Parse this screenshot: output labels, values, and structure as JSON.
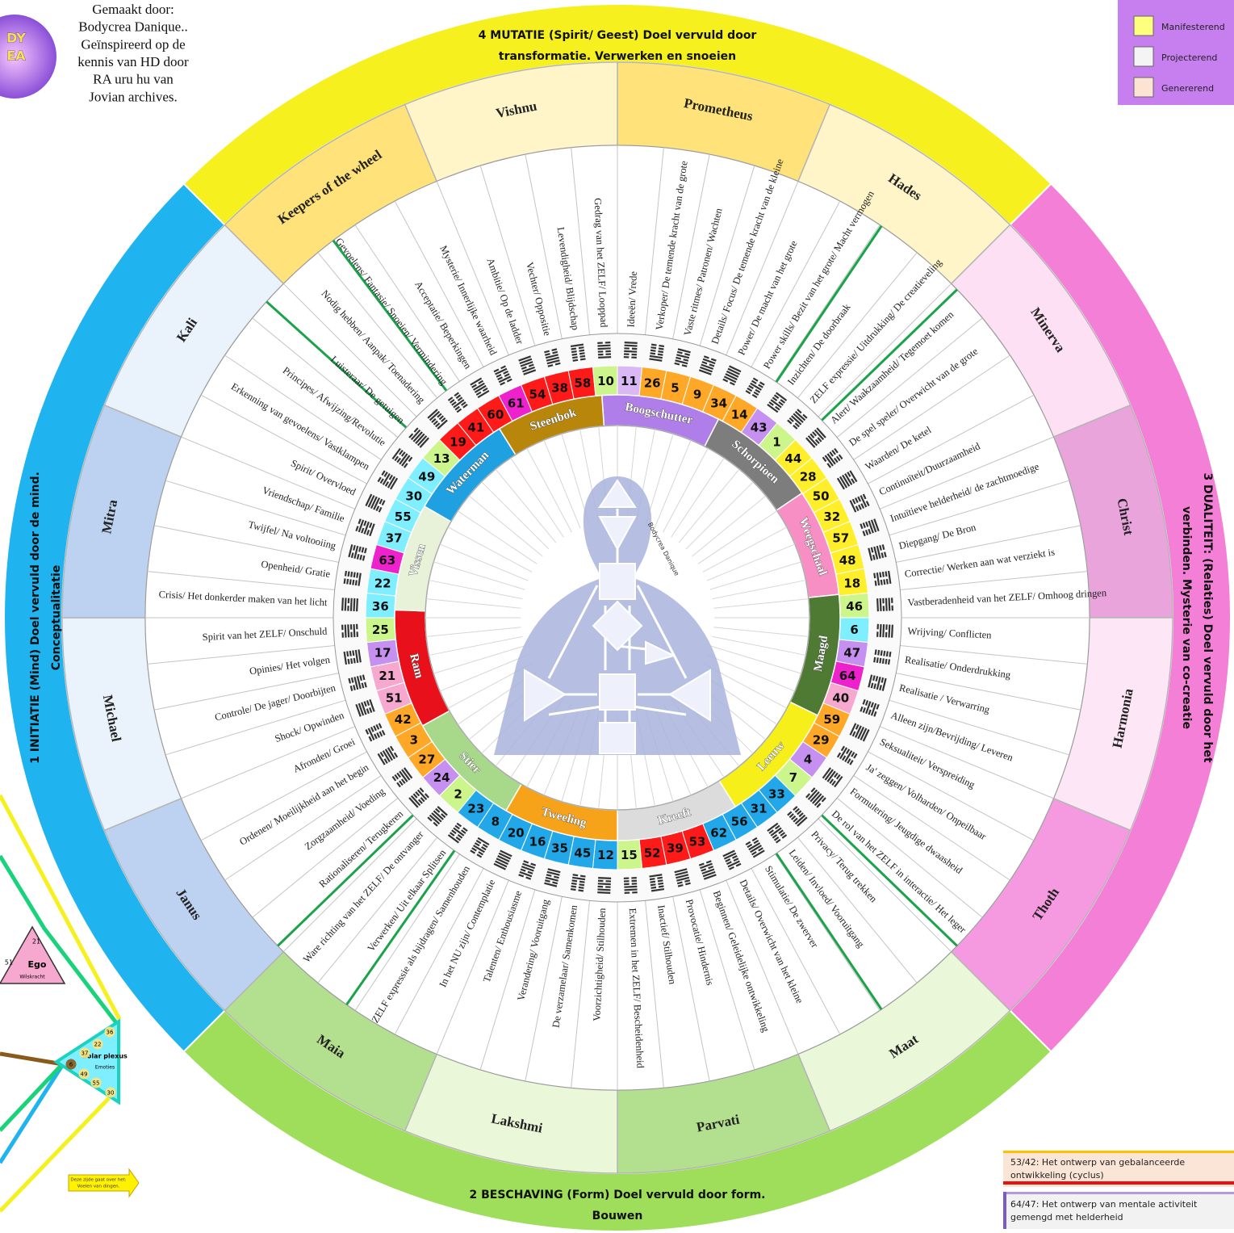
{
  "credit": {
    "lines": [
      "Gemaakt door:",
      "Bodycrea Danique..",
      "Geïnspireerd op de",
      "kennis van HD  door",
      "RA uru hu van",
      "Jovian archives."
    ]
  },
  "logo": [
    "DY",
    "EA"
  ],
  "legend": [
    {
      "label": "Manifesterend",
      "color": "#ffff80"
    },
    {
      "label": "Projecterend",
      "color": "#f4f4f4"
    },
    {
      "label": "Genererend",
      "color": "#fde3d3"
    }
  ],
  "quarters": [
    {
      "title_lines": [
        "4 MUTATIE (Spirit/ Geest) Doel vervuld door",
        "transformatie. Verwerken en snoeien"
      ],
      "color": "#f5f01e"
    },
    {
      "title_lines": [
        "3 DUALITEIT:  (Relaties)  Doel vervuld door het",
        "verbinden. Mysterie van co-creatie"
      ],
      "color": "#f47fd6"
    },
    {
      "title_lines": [
        "2 BESCHAVING (Form) Doel vervuld door form.",
        "Bouwen"
      ],
      "color": "#9ede5a"
    },
    {
      "title_lines": [
        "1 INITIATIE (Mind) Doel vervuld door  de mind.",
        "Conceptualitatie"
      ],
      "color": "#1fb3ef"
    }
  ],
  "gods": [
    {
      "name": "Prometheus",
      "color": "#ffe27a"
    },
    {
      "name": "Hades",
      "color": "#fff5c8"
    },
    {
      "name": "Minerva",
      "color": "#fde0f4"
    },
    {
      "name": "Christ",
      "color": "#eaa4dc"
    },
    {
      "name": "Harmonia",
      "color": "#fde6f6"
    },
    {
      "name": "Thoth",
      "color": "#f59ae0"
    },
    {
      "name": "Maat",
      "color": "#eaf7d8"
    },
    {
      "name": "Parvati",
      "color": "#b3e08f"
    },
    {
      "name": "Lakshmi",
      "color": "#eaf7d8"
    },
    {
      "name": "Maia",
      "color": "#b3e08f"
    },
    {
      "name": "Janus",
      "color": "#bcd2f0"
    },
    {
      "name": "Michael",
      "color": "#eaf2fb"
    },
    {
      "name": "Mitra",
      "color": "#bcd2f0"
    },
    {
      "name": "Kali",
      "color": "#eaf2fb"
    },
    {
      "name": "Keepers of the wheel",
      "color": "#ffe27a"
    },
    {
      "name": "Vishnu",
      "color": "#fff5c8"
    }
  ],
  "zodiac": [
    {
      "name": "Boogschutter",
      "color": "#b07ee8"
    },
    {
      "name": "Schorpioen",
      "color": "#7d7d7d"
    },
    {
      "name": "Weegschaal",
      "color": "#f78fc4"
    },
    {
      "name": "Maagd",
      "color": "#4f7a33"
    },
    {
      "name": "Leeuw",
      "color": "#f7ef1a"
    },
    {
      "name": "Kreeft",
      "color": "#dcdcdc"
    },
    {
      "name": "Tweeling",
      "color": "#f7a31a"
    },
    {
      "name": "Stier",
      "color": "#a8d98a"
    },
    {
      "name": "Ram",
      "color": "#e8101a"
    },
    {
      "name": "Vissen",
      "color": "#e8f2d8"
    },
    {
      "name": "Waterman",
      "color": "#1fa0e0"
    },
    {
      "name": "Steenbok",
      "color": "#b8860b"
    }
  ],
  "gates": [
    {
      "number": 11,
      "color": "#d9b8f5",
      "keynote": "Ideeën/ Vrede"
    },
    {
      "number": 26,
      "color": "#ffa726",
      "keynote": "Verkoper/ De temende kracht van de grote"
    },
    {
      "number": 5,
      "color": "#ffa726",
      "keynote": "Vaste ritmes/ Patronen/ Wachten"
    },
    {
      "number": 9,
      "color": "#ffa726",
      "keynote": "Details/ Focus/ De temende kracht van de kleine"
    },
    {
      "number": 34,
      "color": "#ffa726",
      "keynote": "Power/ De macht van het grote"
    },
    {
      "number": 14,
      "color": "#ffa726",
      "keynote": "Power skills/ Bezit van het grote/ Macht vermogen"
    },
    {
      "number": 43,
      "color": "#c690f0",
      "keynote": "Inzichten/ De doorbraak"
    },
    {
      "number": 1,
      "color": "#ccf58c",
      "keynote": "ZELF expressie/ Uitdrukking/ De creatieveling"
    },
    {
      "number": 44,
      "color": "#ffef2a",
      "keynote": "Alert/ Waakzaamheid/ Tegemoet komen"
    },
    {
      "number": 28,
      "color": "#ffef2a",
      "keynote": "De spel speler/ Overwicht van de grote"
    },
    {
      "number": 50,
      "color": "#ffef2a",
      "keynote": "Waarden/ De ketel"
    },
    {
      "number": 32,
      "color": "#ffef2a",
      "keynote": "Continuïteit/Duurzaamheid"
    },
    {
      "number": 57,
      "color": "#ffef2a",
      "keynote": "Intuïtieve helderheid/ de zachtmoedige"
    },
    {
      "number": 48,
      "color": "#ffef2a",
      "keynote": "Diepgang/ De Bron"
    },
    {
      "number": 18,
      "color": "#ffef2a",
      "keynote": "Correctie/ Werken aan wat verziekt is"
    },
    {
      "number": 46,
      "color": "#ccf58c",
      "keynote": "Vastberadenheid van het ZELF/ Omhoog dringen"
    },
    {
      "number": 6,
      "color": "#7fefff",
      "keynote": "Wrijving/ Conflicten"
    },
    {
      "number": 47,
      "color": "#c690f0",
      "keynote": "Realisatie/ Onderdrukking"
    },
    {
      "number": 64,
      "color": "#ee22cc",
      "keynote": "Realisatie / Verwarring"
    },
    {
      "number": 40,
      "color": "#f7a8cf",
      "keynote": "Alleen zijn/Bevrijding/ Leveren"
    },
    {
      "number": 59,
      "color": "#ffa726",
      "keynote": "Seksualiteit/ Verspreiding"
    },
    {
      "number": 29,
      "color": "#ffa726",
      "keynote": "Ja' zeggen/ Volharden/ Onpeilbaar"
    },
    {
      "number": 4,
      "color": "#c690f0",
      "keynote": "Formulering/ Jeugdige dwaasheid"
    },
    {
      "number": 7,
      "color": "#ccf58c",
      "keynote": "De rol van het ZELF in interactie/ Het leger"
    },
    {
      "number": 33,
      "color": "#22a7e8",
      "keynote": "Privacy/ Terug trekken"
    },
    {
      "number": 31,
      "color": "#22a7e8",
      "keynote": "Leiden/ Invloed/ Vooruitgang"
    },
    {
      "number": 56,
      "color": "#22a7e8",
      "keynote": "Stimulatie/ De zwerver"
    },
    {
      "number": 62,
      "color": "#22a7e8",
      "keynote": "Details/ Overwicht van het kleine"
    },
    {
      "number": 53,
      "color": "#ff1a1a",
      "keynote": "Beginnen/ Geleidelijke ontwikkeling"
    },
    {
      "number": 39,
      "color": "#ff1a1a",
      "keynote": "Provocatie/ Hindernis"
    },
    {
      "number": 52,
      "color": "#ff1a1a",
      "keynote": "Inactief/ Stilhouden"
    },
    {
      "number": 15,
      "color": "#ccf58c",
      "keynote": "Extremen in het ZELF/ Bescheidenheid"
    },
    {
      "number": 12,
      "color": "#22a7e8",
      "keynote": "Voorzichtigheid/ Stilhouden"
    },
    {
      "number": 45,
      "color": "#22a7e8",
      "keynote": "De verzamelaar/ Samenkomen"
    },
    {
      "number": 35,
      "color": "#22a7e8",
      "keynote": "Verandering/ Vooruitgang"
    },
    {
      "number": 16,
      "color": "#22a7e8",
      "keynote": "Talenten/ Enthousiasme"
    },
    {
      "number": 20,
      "color": "#22a7e8",
      "keynote": "In het NU zijn/ Contemplatie"
    },
    {
      "number": 8,
      "color": "#22a7e8",
      "keynote": "ZELF expressie als bijdragen/ Samenhouden"
    },
    {
      "number": 23,
      "color": "#22a7e8",
      "keynote": "Verwerken/ Uit elkaar Splitsen"
    },
    {
      "number": 2,
      "color": "#ccf58c",
      "keynote": "Ware richting van het ZELF/ De ontvanger"
    },
    {
      "number": 24,
      "color": "#c690f0",
      "keynote": "Rationaliseren/ Terugkeren"
    },
    {
      "number": 27,
      "color": "#ffa726",
      "keynote": "Zorgzaamheid/ Voeding"
    },
    {
      "number": 3,
      "color": "#ffa726",
      "keynote": "Ordenen/ Moeilijkheid aan het begin"
    },
    {
      "number": 42,
      "color": "#ffa726",
      "keynote": "Afronden/ Groei"
    },
    {
      "number": 51,
      "color": "#f7a8cf",
      "keynote": "Shock/ Opwinden"
    },
    {
      "number": 21,
      "color": "#f7a8cf",
      "keynote": "Controle/ De jager/ Doorbijten"
    },
    {
      "number": 17,
      "color": "#c690f0",
      "keynote": "Opinies/ Het volgen"
    },
    {
      "number": 25,
      "color": "#ccf58c",
      "keynote": "Spirit van het ZELF/ Onschuld"
    },
    {
      "number": 36,
      "color": "#7fefff",
      "keynote": "Crisis/ Het donkerder maken van het licht"
    },
    {
      "number": 22,
      "color": "#7fefff",
      "keynote": "Openheid/ Gratie"
    },
    {
      "number": 63,
      "color": "#ee22cc",
      "keynote": "Twijfel/ Na voltooiing"
    },
    {
      "number": 37,
      "color": "#7fefff",
      "keynote": "Vriendschap/ Familie"
    },
    {
      "number": 55,
      "color": "#7fefff",
      "keynote": "Spirit/ Overvloed"
    },
    {
      "number": 30,
      "color": "#7fefff",
      "keynote": "Erkenning van gevoelens/ Vastklampen"
    },
    {
      "number": 49,
      "color": "#7fefff",
      "keynote": "Principes/ Afwijzing/Revolutie"
    },
    {
      "number": 13,
      "color": "#ccf58c",
      "keynote": "Luisteraar/ De getuigen"
    },
    {
      "number": 19,
      "color": "#ff1a1a",
      "keynote": "Nodig hebben/ Aanpak/ Toenadering"
    },
    {
      "number": 41,
      "color": "#ff1a1a",
      "keynote": "Gevoelens/ Fantasie/ Snoeien/ Vermindering"
    },
    {
      "number": 60,
      "color": "#ff1a1a",
      "keynote": "Acceptatie/ Beperkingen"
    },
    {
      "number": 61,
      "color": "#ee22cc",
      "keynote": "Mysterie/ Innerlijke waarheid"
    },
    {
      "number": 54,
      "color": "#ff1a1a",
      "keynote": "Ambitie/ Op de ladder"
    },
    {
      "number": 38,
      "color": "#ff1a1a",
      "keynote": "Vechter/ Oppositie"
    },
    {
      "number": 58,
      "color": "#ff1a1a",
      "keynote": "Levendigheid/ Blijdschap"
    },
    {
      "number": 10,
      "color": "#ccf58c",
      "keynote": "Gedrag van het ZELF/ Looppad"
    }
  ],
  "bodygraph": {
    "signature": "Bodycrea Danique"
  },
  "side_panel": {
    "ego": {
      "name": "Ego",
      "sub": "Wilskracht",
      "gates": [
        21,
        51
      ]
    },
    "solar": {
      "name": "Solar plexus",
      "sub": "Emoties",
      "gates": [
        36,
        22,
        37,
        6,
        49,
        55,
        30
      ]
    },
    "arrow_note": [
      "Deze zijde gaat over het:",
      "Voelen van dingen."
    ]
  },
  "notes": [
    {
      "lines": [
        "53/42: Het ontwerp van gebalanceerde",
        "ontwikkeling (cyclus)"
      ]
    },
    {
      "lines": [
        "64/47: Het ontwerp van mentale activiteit",
        "gemengd met helderheid"
      ]
    }
  ]
}
